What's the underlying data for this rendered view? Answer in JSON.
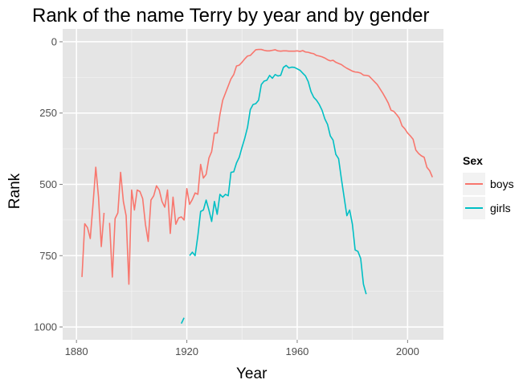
{
  "chart_data": {
    "type": "line",
    "title": "Rank of the name Terry by year and by gender",
    "xlabel": "Year",
    "ylabel": "Rank",
    "xlim": [
      1875,
      2013
    ],
    "ylim": [
      0,
      1045
    ],
    "y_reversed": true,
    "x_ticks": [
      1880,
      1920,
      1960,
      2000
    ],
    "y_ticks": [
      0,
      250,
      500,
      750,
      1000
    ],
    "grid": true,
    "legend": {
      "title": "Sex",
      "placement": "right"
    },
    "series": [
      {
        "name": "boys",
        "color": "#f8766d",
        "segments": [
          [
            [
              1882,
              825
            ],
            [
              1883,
              638
            ],
            [
              1884,
              652
            ],
            [
              1885,
              690
            ],
            [
              1886,
              570
            ],
            [
              1887,
              440
            ],
            [
              1888,
              545
            ],
            [
              1889,
              718
            ],
            [
              1890,
              600
            ]
          ],
          [
            [
              1892,
              635
            ],
            [
              1893,
              825
            ],
            [
              1894,
              620
            ],
            [
              1895,
              600
            ],
            [
              1896,
              458
            ],
            [
              1897,
              560
            ],
            [
              1898,
              610
            ],
            [
              1899,
              850
            ],
            [
              1900,
              520
            ],
            [
              1901,
              590
            ],
            [
              1902,
              520
            ],
            [
              1903,
              525
            ],
            [
              1904,
              550
            ],
            [
              1905,
              640
            ],
            [
              1906,
              700
            ],
            [
              1907,
              555
            ],
            [
              1908,
              540
            ],
            [
              1909,
              505
            ],
            [
              1910,
              520
            ],
            [
              1911,
              560
            ],
            [
              1912,
              580
            ],
            [
              1913,
              520
            ],
            [
              1914,
              672
            ],
            [
              1915,
              545
            ],
            [
              1916,
              640
            ],
            [
              1917,
              618
            ],
            [
              1918,
              614
            ],
            [
              1919,
              625
            ],
            [
              1920,
              515
            ],
            [
              1921,
              570
            ],
            [
              1922,
              553
            ],
            [
              1923,
              530
            ],
            [
              1924,
              535
            ],
            [
              1925,
              430
            ],
            [
              1926,
              478
            ],
            [
              1927,
              465
            ],
            [
              1928,
              408
            ],
            [
              1929,
              385
            ],
            [
              1930,
              320
            ],
            [
              1931,
              320
            ],
            [
              1932,
              255
            ],
            [
              1933,
              205
            ],
            [
              1934,
              180
            ],
            [
              1935,
              155
            ],
            [
              1936,
              130
            ],
            [
              1937,
              115
            ],
            [
              1938,
              85
            ],
            [
              1939,
              82
            ],
            [
              1940,
              72
            ],
            [
              1941,
              60
            ],
            [
              1942,
              50
            ],
            [
              1943,
              48
            ],
            [
              1944,
              38
            ],
            [
              1945,
              28
            ],
            [
              1946,
              27
            ],
            [
              1947,
              27
            ],
            [
              1948,
              30
            ],
            [
              1949,
              32
            ],
            [
              1950,
              32
            ],
            [
              1951,
              30
            ],
            [
              1952,
              28
            ],
            [
              1953,
              32
            ],
            [
              1954,
              33
            ],
            [
              1955,
              32
            ],
            [
              1956,
              32
            ],
            [
              1957,
              33
            ],
            [
              1958,
              33
            ],
            [
              1959,
              33
            ],
            [
              1960,
              32
            ],
            [
              1961,
              34
            ],
            [
              1962,
              31
            ],
            [
              1963,
              36
            ],
            [
              1964,
              37
            ],
            [
              1965,
              40
            ],
            [
              1966,
              42
            ],
            [
              1967,
              48
            ],
            [
              1968,
              50
            ],
            [
              1969,
              53
            ],
            [
              1970,
              57
            ],
            [
              1971,
              63
            ],
            [
              1972,
              67
            ],
            [
              1973,
              65
            ],
            [
              1974,
              72
            ],
            [
              1975,
              76
            ],
            [
              1976,
              80
            ],
            [
              1977,
              87
            ],
            [
              1978,
              93
            ],
            [
              1979,
              98
            ],
            [
              1980,
              103
            ],
            [
              1981,
              106
            ],
            [
              1982,
              107
            ],
            [
              1983,
              110
            ],
            [
              1984,
              117
            ],
            [
              1985,
              118
            ],
            [
              1986,
              120
            ],
            [
              1987,
              130
            ],
            [
              1988,
              140
            ],
            [
              1989,
              150
            ],
            [
              1990,
              165
            ],
            [
              1991,
              180
            ],
            [
              1992,
              197
            ],
            [
              1993,
              215
            ],
            [
              1994,
              240
            ],
            [
              1995,
              244
            ],
            [
              1996,
              255
            ],
            [
              1997,
              268
            ],
            [
              1998,
              295
            ],
            [
              1999,
              305
            ],
            [
              2000,
              320
            ],
            [
              2001,
              330
            ],
            [
              2002,
              342
            ],
            [
              2003,
              380
            ],
            [
              2004,
              392
            ],
            [
              2005,
              400
            ],
            [
              2006,
              405
            ],
            [
              2007,
              440
            ],
            [
              2008,
              452
            ],
            [
              2009,
              475
            ]
          ]
        ]
      },
      {
        "name": "girls",
        "color": "#00bfc4",
        "segments": [
          [
            [
              1918,
              988
            ],
            [
              1919,
              968
            ]
          ],
          [
            [
              1921,
              750
            ],
            [
              1922,
              738
            ],
            [
              1923,
              750
            ],
            [
              1924,
              680
            ],
            [
              1925,
              595
            ],
            [
              1926,
              590
            ],
            [
              1927,
              555
            ],
            [
              1928,
              590
            ],
            [
              1929,
              630
            ],
            [
              1930,
              560
            ],
            [
              1931,
              605
            ],
            [
              1932,
              535
            ],
            [
              1933,
              545
            ],
            [
              1934,
              535
            ],
            [
              1935,
              540
            ],
            [
              1936,
              458
            ],
            [
              1937,
              456
            ],
            [
              1938,
              425
            ],
            [
              1939,
              405
            ],
            [
              1940,
              370
            ],
            [
              1941,
              338
            ],
            [
              1942,
              300
            ],
            [
              1943,
              238
            ],
            [
              1944,
              220
            ],
            [
              1945,
              217
            ],
            [
              1946,
              205
            ],
            [
              1947,
              150
            ],
            [
              1948,
              138
            ],
            [
              1949,
              135
            ],
            [
              1950,
              118
            ],
            [
              1951,
              128
            ],
            [
              1952,
              115
            ],
            [
              1953,
              120
            ],
            [
              1954,
              118
            ],
            [
              1955,
              90
            ],
            [
              1956,
              83
            ],
            [
              1957,
              92
            ],
            [
              1958,
              89
            ],
            [
              1959,
              90
            ],
            [
              1960,
              95
            ],
            [
              1961,
              100
            ],
            [
              1962,
              110
            ],
            [
              1963,
              120
            ],
            [
              1964,
              140
            ],
            [
              1965,
              175
            ],
            [
              1966,
              195
            ],
            [
              1967,
              205
            ],
            [
              1968,
              220
            ],
            [
              1969,
              240
            ],
            [
              1970,
              270
            ],
            [
              1971,
              290
            ],
            [
              1972,
              330
            ],
            [
              1973,
              345
            ],
            [
              1974,
              395
            ],
            [
              1975,
              410
            ],
            [
              1976,
              480
            ],
            [
              1977,
              545
            ],
            [
              1978,
              610
            ],
            [
              1979,
              590
            ],
            [
              1980,
              640
            ],
            [
              1981,
              730
            ],
            [
              1982,
              735
            ],
            [
              1983,
              760
            ],
            [
              1984,
              850
            ],
            [
              1985,
              885
            ]
          ]
        ]
      }
    ]
  }
}
